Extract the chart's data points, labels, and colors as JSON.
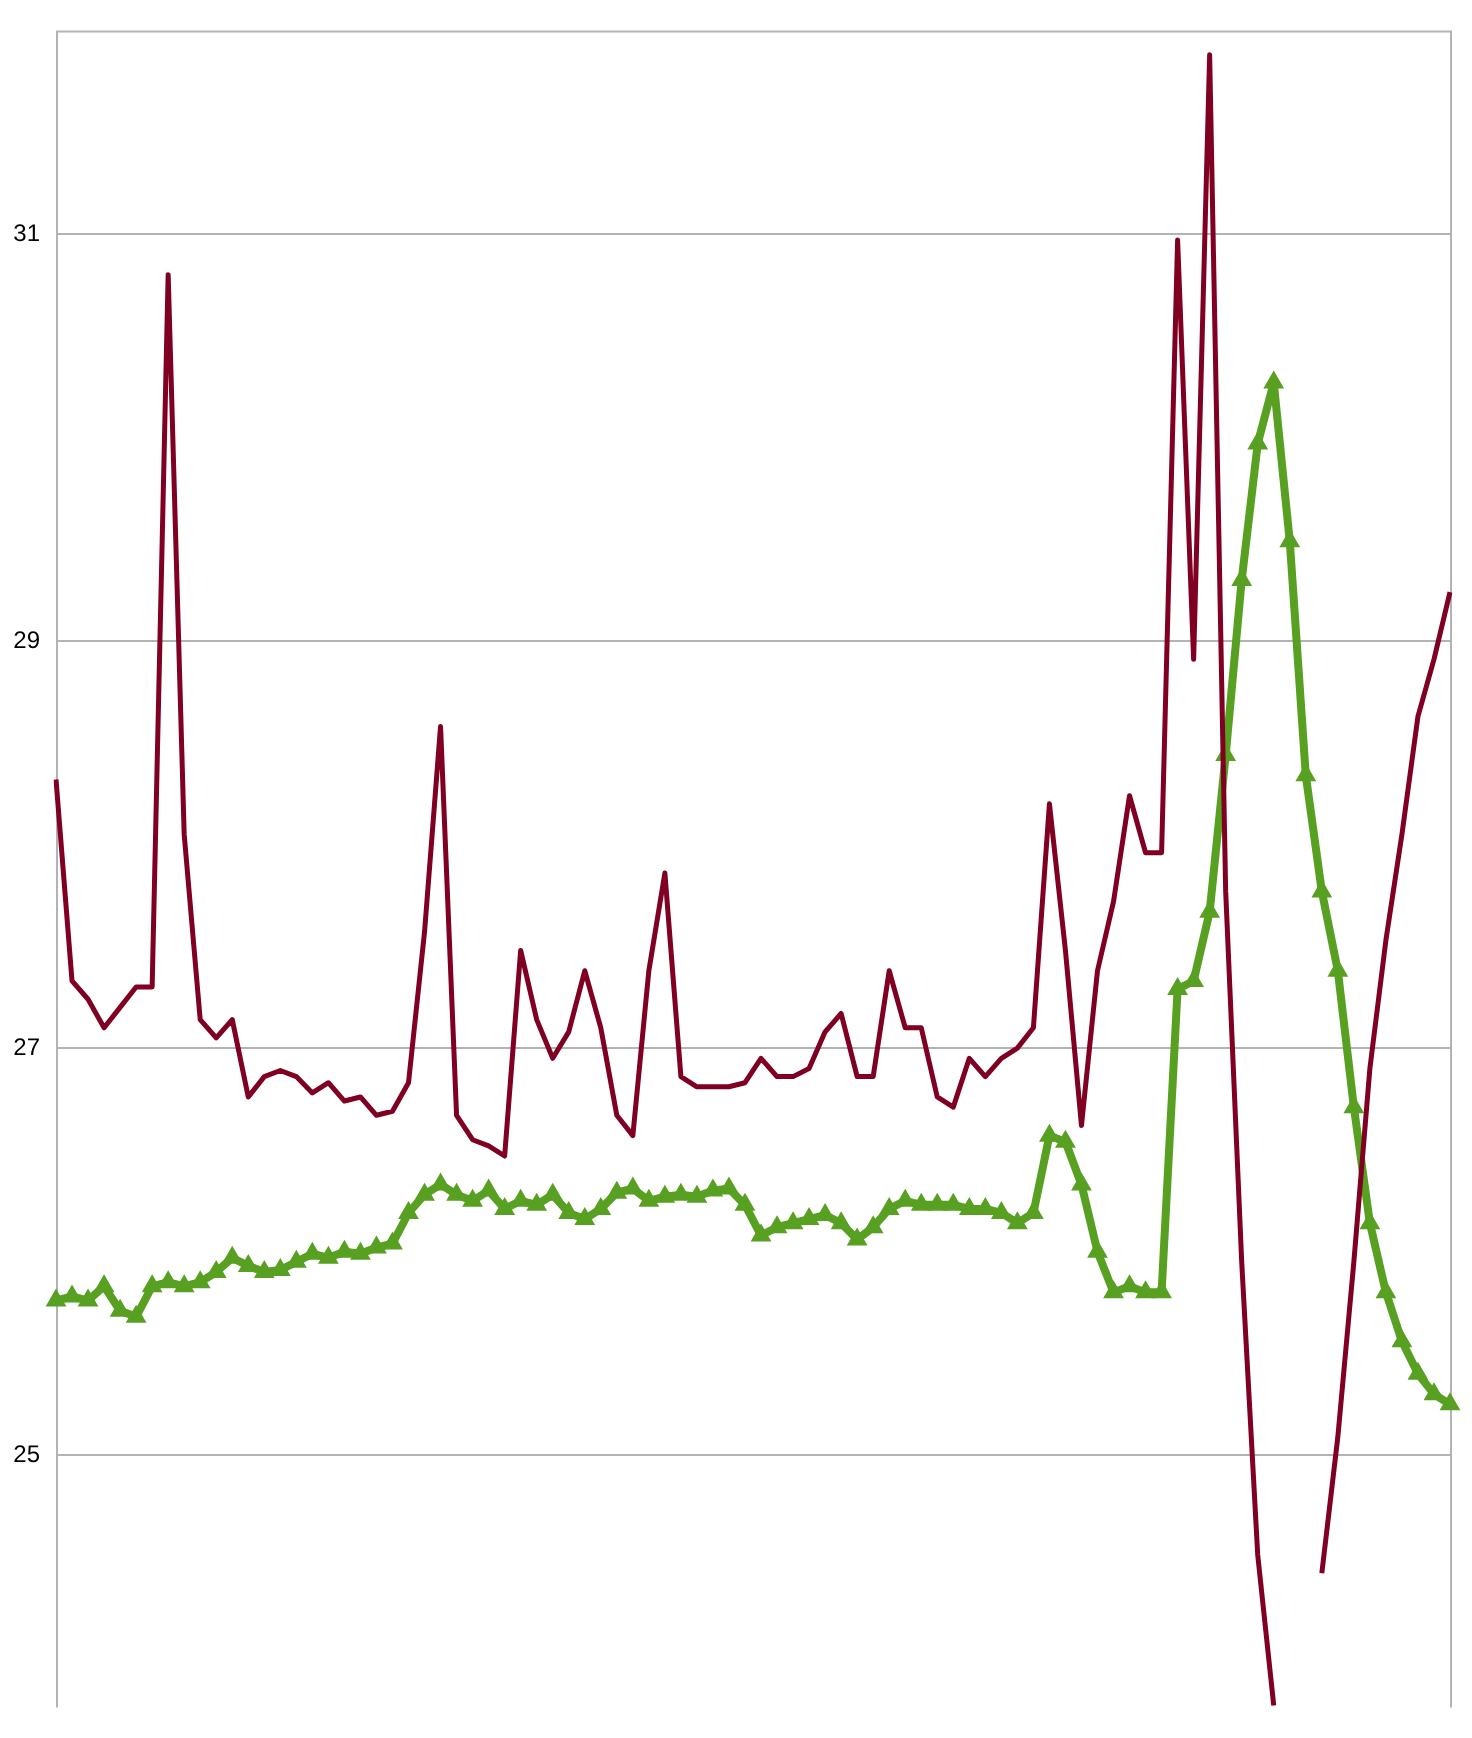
{
  "chart_data": {
    "type": "line",
    "categories": [
      null,
      null,
      null,
      null,
      null,
      null,
      null,
      null,
      null,
      null,
      null,
      null,
      null,
      null,
      null,
      null,
      null,
      null,
      null,
      null,
      null,
      null,
      null,
      null,
      null,
      null,
      null,
      null,
      null,
      null,
      null,
      null,
      null,
      null,
      null,
      null,
      null,
      null,
      null,
      null,
      null,
      null,
      null,
      null,
      null,
      null,
      null,
      null,
      null,
      null,
      null,
      null,
      null,
      null,
      null,
      null,
      null,
      null,
      null,
      null,
      null,
      null,
      null,
      null,
      null,
      null,
      null,
      null,
      null,
      null,
      null,
      null,
      null,
      null,
      null,
      null,
      null,
      null,
      null,
      null,
      null,
      null,
      null,
      null,
      null,
      null,
      null,
      null
    ],
    "series": [
      {
        "color": "#7f0022",
        "marker": "none",
        "values": [
          28.32,
          27.33,
          27.24,
          27.1,
          27.2,
          27.3,
          27.3,
          30.8,
          28.05,
          27.14,
          27.05,
          27.14,
          26.76,
          26.86,
          26.89,
          26.86,
          26.78,
          26.83,
          26.74,
          26.76,
          26.67,
          26.69,
          26.83,
          27.57,
          28.58,
          26.67,
          26.55,
          26.52,
          26.47,
          27.48,
          27.14,
          26.95,
          27.08,
          27.38,
          27.1,
          26.67,
          26.57,
          27.38,
          27.86,
          26.86,
          26.81,
          26.81,
          26.81,
          26.83,
          26.95,
          26.86,
          26.86,
          26.9,
          27.08,
          27.17,
          26.86,
          26.86,
          27.38,
          27.1,
          27.1,
          26.76,
          26.71,
          26.95,
          26.86,
          26.95,
          27.0,
          27.1,
          28.2,
          27.48,
          26.62,
          27.38,
          27.72,
          28.24,
          27.96,
          27.96,
          30.97,
          28.91,
          31.88,
          27.77,
          25.95,
          24.51,
          23.77,
          null,
          null,
          24.42,
          25.09,
          25.95,
          26.9,
          27.53,
          28.05,
          28.63,
          28.91,
          29.24
        ]
      },
      {
        "color": "#58a021",
        "marker": "triangle",
        "values": [
          25.76,
          25.78,
          25.76,
          25.83,
          25.71,
          25.68,
          25.83,
          25.85,
          25.83,
          25.85,
          25.9,
          25.97,
          25.93,
          25.9,
          25.91,
          25.95,
          25.99,
          25.97,
          26.0,
          25.99,
          26.02,
          26.04,
          26.19,
          26.28,
          26.33,
          26.28,
          26.25,
          26.3,
          26.21,
          26.25,
          26.23,
          26.28,
          26.19,
          26.16,
          26.21,
          26.29,
          26.31,
          26.25,
          26.27,
          26.28,
          26.27,
          26.3,
          26.31,
          26.23,
          26.08,
          26.12,
          26.14,
          26.16,
          26.18,
          26.14,
          26.06,
          26.12,
          26.21,
          26.25,
          26.23,
          26.23,
          26.23,
          26.21,
          26.21,
          26.19,
          26.14,
          26.19,
          26.57,
          26.54,
          26.33,
          26.0,
          25.8,
          25.83,
          25.8,
          25.8,
          27.29,
          27.33,
          27.67,
          28.44,
          29.3,
          29.97,
          30.27,
          29.49,
          28.34,
          27.77,
          27.38,
          26.71,
          26.14,
          25.8,
          25.56,
          25.4,
          25.3,
          25.25
        ]
      }
    ],
    "ylim": [
      23.76,
      32
    ],
    "yticks": [
      25,
      27,
      29,
      31
    ],
    "grid": "y",
    "tick_labels": "y",
    "legend": false
  }
}
